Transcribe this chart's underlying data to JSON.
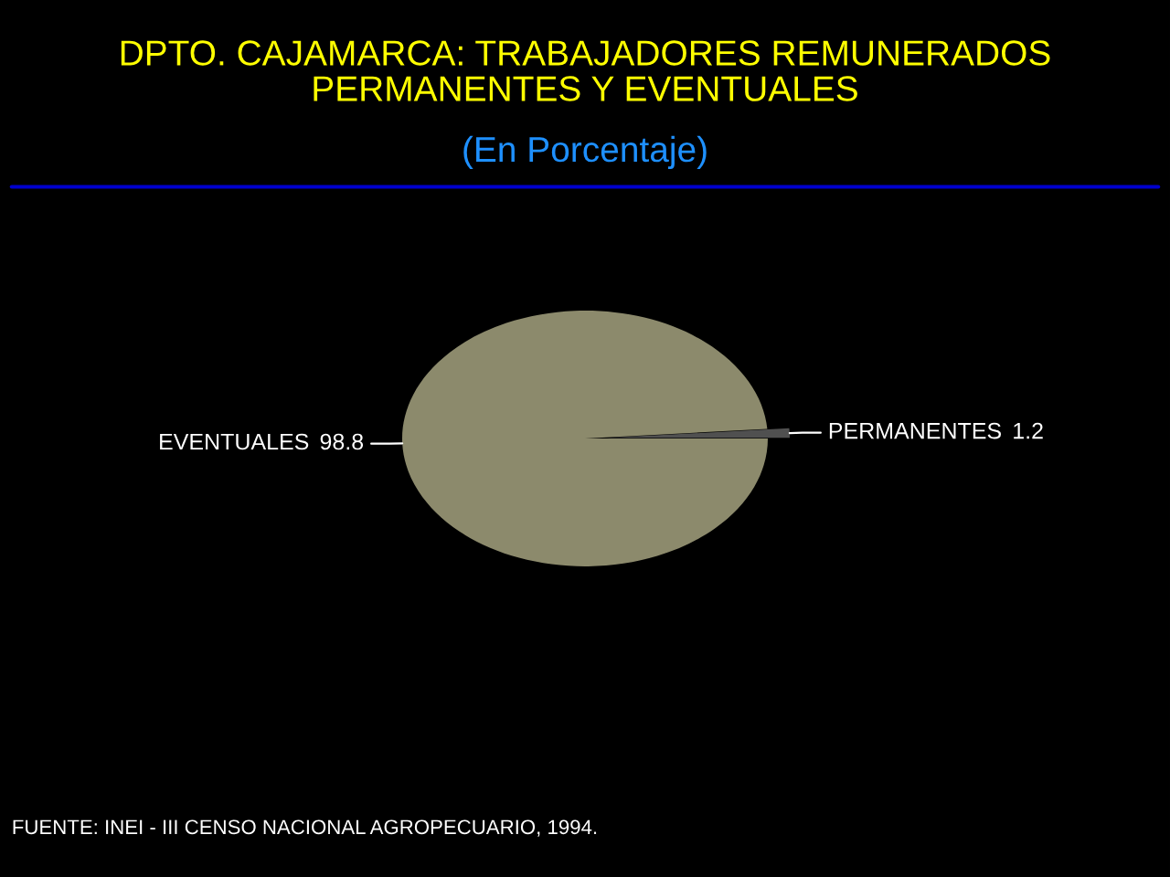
{
  "chart_data": {
    "type": "pie",
    "title": "DPTO. CAJAMARCA: TRABAJADORES REMUNERADOS\nPERMANENTES Y EVENTUALES",
    "subtitle": "(En Porcentaje)",
    "categories": [
      "PERMANENTES",
      "EVENTUALES"
    ],
    "values": [
      1.2,
      98.8
    ],
    "colors": [
      "#505050",
      "#8c8a6c"
    ],
    "data_labels": true,
    "annotations": [
      "FUENTE: INEI - III CENSO NACIONAL AGROPECUARIO, 1994."
    ]
  }
}
